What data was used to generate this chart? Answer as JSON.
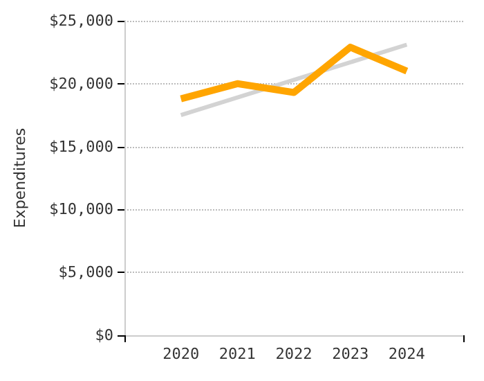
{
  "chart_data": {
    "type": "line",
    "ylabel": "Expenditures",
    "x": [
      2020,
      2021,
      2022,
      2023,
      2024
    ],
    "series": [
      {
        "type": "line",
        "color": "#d3d3d3",
        "x": [
          2020,
          2024
        ],
        "values": [
          17500,
          23100
        ]
      },
      {
        "color": "#ffa500",
        "values": [
          18800,
          20000,
          19300,
          22900,
          21000
        ]
      }
    ],
    "xlim": [
      2019,
      2025
    ],
    "xticks": [
      2020,
      2021,
      2022,
      2023,
      2024
    ],
    "ylim": [
      0,
      25000
    ],
    "yticks": [
      {
        "value": 0,
        "label": "$0"
      },
      {
        "value": 5000,
        "label": "$5,000"
      },
      {
        "value": 10000,
        "label": "$10,000"
      },
      {
        "value": 15000,
        "label": "$15,000"
      },
      {
        "value": 20000,
        "label": "$20,000"
      },
      {
        "value": 25000,
        "label": "$25,000"
      }
    ],
    "grid": "y",
    "marker": "none"
  }
}
